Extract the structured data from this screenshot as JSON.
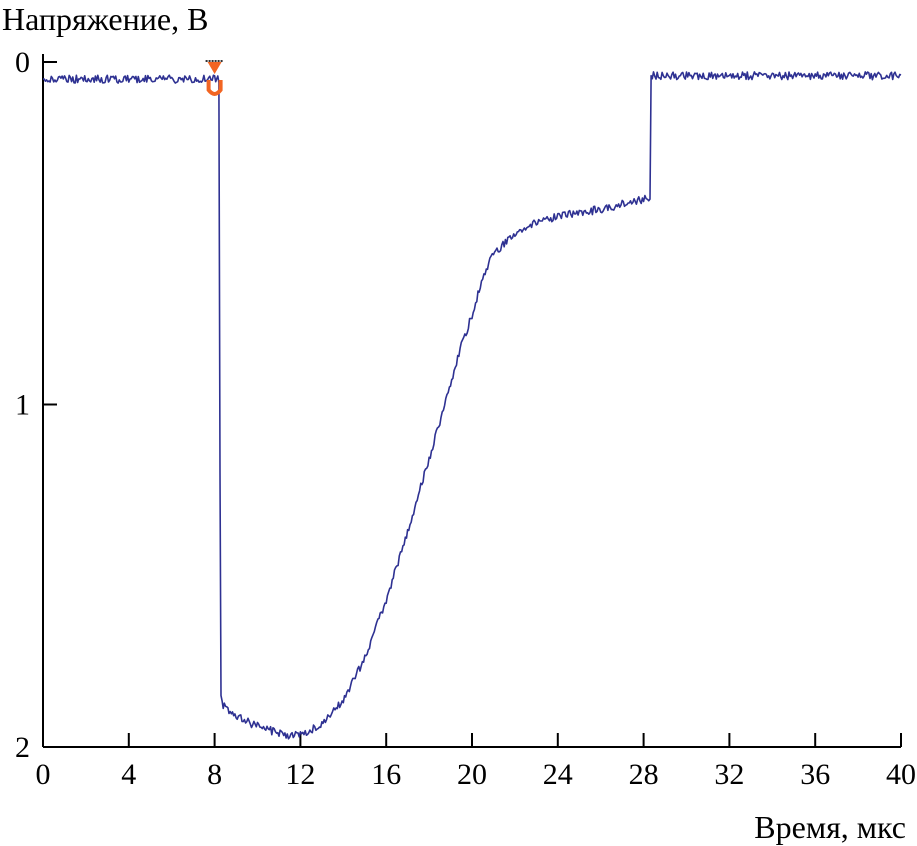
{
  "chart_data": {
    "type": "line",
    "title": "",
    "ylabel": "Напряжение, В",
    "xlabel": "Время, мкс",
    "xlim": [
      0,
      40
    ],
    "ylim": [
      0,
      2
    ],
    "y_inverted": true,
    "grid": false,
    "x_ticks": [
      {
        "value": 0,
        "label": "0"
      },
      {
        "value": 4,
        "label": "4"
      },
      {
        "value": 8,
        "label": "8"
      },
      {
        "value": 12,
        "label": "12"
      },
      {
        "value": 16,
        "label": "16"
      },
      {
        "value": 20,
        "label": "20"
      },
      {
        "value": 24,
        "label": "24"
      },
      {
        "value": 28,
        "label": "28"
      },
      {
        "value": 32,
        "label": "32"
      },
      {
        "value": 36,
        "label": "36"
      },
      {
        "value": 40,
        "label": "40"
      }
    ],
    "y_ticks": [
      {
        "value": 0,
        "label": "0"
      },
      {
        "value": 1,
        "label": "1"
      },
      {
        "value": 2,
        "label": "2"
      }
    ],
    "series": [
      {
        "color": "#2e3192",
        "x": [
          0,
          2,
          4,
          6,
          8,
          8.2,
          8.25,
          8.3,
          8.4,
          9,
          10,
          11,
          11.5,
          12,
          12.5,
          13,
          13.5,
          14,
          15,
          16,
          17,
          18,
          19,
          19.5,
          20,
          20.5,
          21,
          22,
          23,
          24,
          25,
          26,
          27,
          28,
          28.3,
          28.35,
          30,
          32,
          34,
          36,
          38,
          40
        ],
        "y": [
          0.05,
          0.05,
          0.05,
          0.05,
          0.05,
          0.05,
          1.2,
          1.85,
          1.88,
          1.91,
          1.94,
          1.96,
          1.965,
          1.96,
          1.95,
          1.93,
          1.9,
          1.86,
          1.74,
          1.57,
          1.37,
          1.16,
          0.94,
          0.83,
          0.74,
          0.63,
          0.56,
          0.5,
          0.47,
          0.45,
          0.44,
          0.43,
          0.415,
          0.4,
          0.4,
          0.04,
          0.04,
          0.04,
          0.04,
          0.04,
          0.04,
          0.04
        ]
      }
    ],
    "markers": [
      {
        "x": 8,
        "y": 0.0,
        "shape": "triangle-down",
        "color": "#f26522"
      },
      {
        "x": 8,
        "y": 0.07,
        "shape": "u",
        "color": "#f26522"
      }
    ]
  }
}
